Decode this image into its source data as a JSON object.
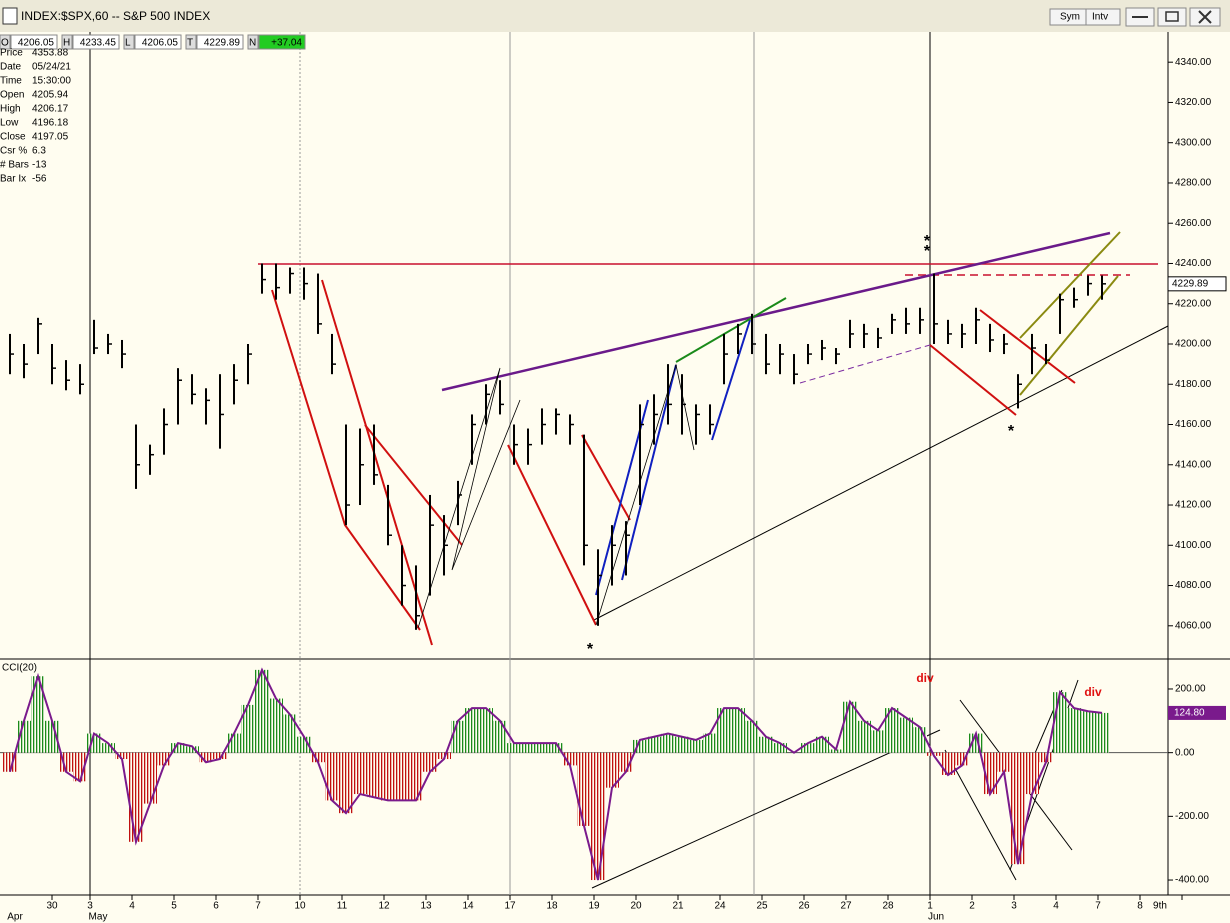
{
  "window": {
    "title": "INDEX:$SPX,60 -- S&P 500 INDEX",
    "buttons": [
      "Sym",
      "Intv"
    ]
  },
  "quote_bar": [
    {
      "label": "O",
      "value": "4206.05"
    },
    {
      "label": "H",
      "value": "4233.45"
    },
    {
      "label": "L",
      "value": "4206.05"
    },
    {
      "label": "T",
      "value": "4229.89"
    },
    {
      "label": "N",
      "value": "+37.04"
    }
  ],
  "data_window": [
    [
      "Price",
      "4353.88"
    ],
    [
      "Date",
      "05/24/21"
    ],
    [
      "Time",
      "15:30:00"
    ],
    [
      "Open",
      "4205.94"
    ],
    [
      "High",
      "4206.17"
    ],
    [
      "Low",
      "4196.18"
    ],
    [
      "Close",
      "4197.05"
    ],
    [
      "Csr %",
      "6.3"
    ],
    [
      "# Bars",
      "-13"
    ],
    [
      "Bar Ix",
      "-56"
    ]
  ],
  "x_axis": {
    "days": [
      "30",
      "3",
      "4",
      "5",
      "6",
      "7",
      "10",
      "11",
      "12",
      "13",
      "14",
      "17",
      "18",
      "19",
      "20",
      "21",
      "24",
      "25",
      "26",
      "27",
      "28",
      "1",
      "2",
      "3",
      "4",
      "7",
      "8",
      "9th"
    ],
    "months": [
      "Apr",
      "May",
      "Jun"
    ]
  },
  "chart_data": [
    {
      "type": "ohlc",
      "color": "#000000",
      "high": [
        4205,
        4200,
        4213,
        4200,
        4192,
        4190,
        4212,
        4205,
        4202,
        4160,
        4150,
        4168,
        4188,
        4185,
        4178,
        4185,
        4190,
        4200,
        4240,
        4240,
        4238,
        4238,
        4235,
        4205,
        4160,
        4158,
        4160,
        4130,
        4100,
        4090,
        4125,
        4115,
        4132,
        4165,
        4180,
        4182,
        4160,
        4158,
        4168,
        4168,
        4165,
        4155,
        4098,
        4110,
        4112,
        4170,
        4175,
        4190,
        4185,
        4170,
        4170,
        4205,
        4210,
        4215,
        4205,
        4200,
        4195,
        4200,
        4202,
        4198,
        4212,
        4210,
        4208,
        4215,
        4218,
        4218,
        4235,
        4212,
        4210,
        4218,
        4210,
        4205,
        4185,
        4205,
        4200,
        4225,
        4228,
        4234,
        4234
      ],
      "low": [
        4185,
        4183,
        4195,
        4180,
        4177,
        4175,
        4195,
        4195,
        4188,
        4128,
        4135,
        4145,
        4160,
        4170,
        4160,
        4148,
        4170,
        4180,
        4225,
        4222,
        4225,
        4222,
        4205,
        4185,
        4110,
        4120,
        4130,
        4100,
        4070,
        4058,
        4075,
        4085,
        4110,
        4140,
        4160,
        4165,
        4140,
        4140,
        4150,
        4155,
        4150,
        4090,
        4060,
        4080,
        4085,
        4120,
        4150,
        4160,
        4155,
        4150,
        4155,
        4180,
        4195,
        4195,
        4185,
        4185,
        4180,
        4190,
        4192,
        4190,
        4198,
        4198,
        4198,
        4205,
        4205,
        4205,
        4200,
        4200,
        4198,
        4200,
        4196,
        4195,
        4168,
        4185,
        4190,
        4205,
        4218,
        4224,
        4222
      ],
      "close": [
        4195,
        4190,
        4210,
        4188,
        4182,
        4180,
        4198,
        4200,
        4195,
        4140,
        4145,
        4160,
        4182,
        4175,
        4172,
        4165,
        4182,
        4195,
        4232,
        4228,
        4235,
        4230,
        4210,
        4190,
        4120,
        4140,
        4135,
        4105,
        4080,
        4065,
        4110,
        4100,
        4125,
        4160,
        4175,
        4170,
        4150,
        4150,
        4160,
        4165,
        4160,
        4100,
        4085,
        4100,
        4105,
        4160,
        4165,
        4170,
        4170,
        4165,
        4160,
        4195,
        4205,
        4200,
        4190,
        4195,
        4185,
        4195,
        4198,
        4195,
        4205,
        4205,
        4203,
        4212,
        4210,
        4212,
        4210,
        4205,
        4205,
        4212,
        4202,
        4200,
        4180,
        4198,
        4192,
        4222,
        4222,
        4230,
        4229.89
      ],
      "ylim": [
        4044,
        4355
      ],
      "yticks": [
        {
          "value": 4060,
          "label": "4060.00"
        },
        {
          "value": 4080,
          "label": "4080.00"
        },
        {
          "value": 4100,
          "label": "4100.00"
        },
        {
          "value": 4120,
          "label": "4120.00"
        },
        {
          "value": 4140,
          "label": "4140.00"
        },
        {
          "value": 4160,
          "label": "4160.00"
        },
        {
          "value": 4180,
          "label": "4180.00"
        },
        {
          "value": 4200,
          "label": "4200.00"
        },
        {
          "value": 4220,
          "label": "4220.00"
        },
        {
          "value": 4240,
          "label": "4240.00"
        },
        {
          "value": 4260,
          "label": "4260.00"
        },
        {
          "value": 4280,
          "label": "4280.00"
        },
        {
          "value": 4300,
          "label": "4300.00"
        },
        {
          "value": 4320,
          "label": "4320.00"
        },
        {
          "value": 4340,
          "label": "4340.00"
        }
      ],
      "annotations": [
        {
          "text": "*",
          "color": "#e01010"
        },
        {
          "text": "*",
          "color": "#e01010"
        },
        {
          "text": "*",
          "color": "#e01010"
        },
        {
          "text": "*",
          "color": "#101080"
        }
      ]
    },
    {
      "type": "cci",
      "title": "CCI(20)",
      "line_color": "#7a1a8c",
      "up_color": "#1a8a1a",
      "down_color": "#c01010",
      "values": [
        -60,
        100,
        240,
        100,
        -60,
        -90,
        60,
        30,
        -20,
        -280,
        -160,
        -40,
        30,
        20,
        -30,
        -20,
        60,
        150,
        260,
        170,
        120,
        50,
        -30,
        -150,
        -190,
        -130,
        -140,
        -150,
        -150,
        -150,
        -60,
        -20,
        100,
        140,
        140,
        100,
        30,
        30,
        30,
        30,
        -40,
        -230,
        -400,
        -110,
        -60,
        40,
        50,
        60,
        50,
        40,
        60,
        140,
        140,
        100,
        50,
        30,
        0,
        30,
        50,
        10,
        160,
        100,
        70,
        140,
        110,
        80,
        -10,
        -70,
        -40,
        60,
        -130,
        -60,
        -350,
        -130,
        -30,
        190,
        140,
        130,
        124.8
      ],
      "last_label": "124.80",
      "ylim": [
        -447,
        291
      ],
      "yticks": [
        {
          "value": -400,
          "label": "-400.00"
        },
        {
          "value": -200,
          "label": "-200.00"
        },
        {
          "value": 0,
          "label": "0.00"
        },
        {
          "value": 200,
          "label": "200.00"
        }
      ],
      "annotations": [
        {
          "text": "div",
          "color": "#e01010"
        },
        {
          "text": "div",
          "color": "#e01010"
        }
      ]
    }
  ]
}
